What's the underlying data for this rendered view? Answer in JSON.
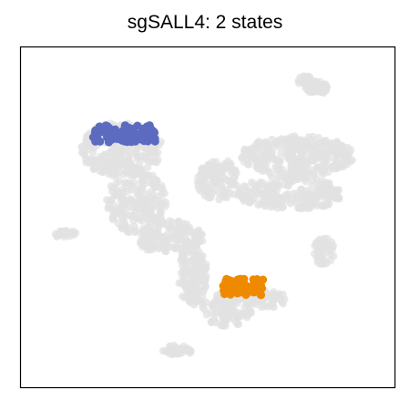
{
  "chart_data": {
    "type": "scatter",
    "title": "sgSALL4: 2 states",
    "xlabel": "",
    "ylabel": "",
    "ticks": "none",
    "grid": false,
    "legend": "none",
    "colors": {
      "background_cells": "#e2e2e2",
      "state_1": "#5c6bc0",
      "state_2": "#ef8a00",
      "frame": "#000000"
    },
    "xlim": [
      0,
      100
    ],
    "ylim": [
      0,
      100
    ],
    "background_regions": [
      {
        "name": "left-branch-top",
        "center": [
          27,
          70
        ],
        "radius": [
          11,
          8
        ],
        "count": 260
      },
      {
        "name": "left-branch-lower",
        "center": [
          31,
          55
        ],
        "radius": [
          8,
          10
        ],
        "count": 200
      },
      {
        "name": "left-to-center-bridge",
        "center": [
          40,
          44
        ],
        "radius": [
          9,
          5
        ],
        "count": 150
      },
      {
        "name": "stem-down",
        "center": [
          46,
          33
        ],
        "radius": [
          4,
          9
        ],
        "count": 150
      },
      {
        "name": "lower-spur",
        "center": [
          55,
          23
        ],
        "radius": [
          7,
          5
        ],
        "count": 110
      },
      {
        "name": "right-cluster-main",
        "center": [
          74,
          68
        ],
        "radius": [
          15,
          6
        ],
        "count": 300
      },
      {
        "name": "right-cluster-lower",
        "center": [
          72,
          57
        ],
        "radius": [
          14,
          5
        ],
        "count": 220
      },
      {
        "name": "center-band",
        "center": [
          53,
          61
        ],
        "radius": [
          6,
          6
        ],
        "count": 110
      },
      {
        "name": "right-top-ring",
        "center": [
          79,
          88
        ],
        "radius": [
          3,
          2
        ],
        "count": 50
      },
      {
        "name": "top-center-blob",
        "center": [
          76,
          90
        ],
        "radius": [
          2,
          1.5
        ],
        "count": 25
      },
      {
        "name": "left-small-island",
        "center": [
          12,
          45
        ],
        "radius": [
          3,
          1.2
        ],
        "count": 25
      },
      {
        "name": "right-small-island",
        "center": [
          81,
          40
        ],
        "radius": [
          3,
          4
        ],
        "count": 45
      },
      {
        "name": "bottom-island",
        "center": [
          42,
          11
        ],
        "radius": [
          4,
          1.5
        ],
        "count": 30
      },
      {
        "name": "right-lower-arm",
        "center": [
          66,
          26
        ],
        "radius": [
          5,
          2.5
        ],
        "count": 45
      }
    ],
    "series": [
      {
        "color": "#5c6bc0",
        "region": {
          "x": [
            19,
            36
          ],
          "y": [
            72,
            77
          ]
        },
        "count": 90
      },
      {
        "color": "#ef8a00",
        "region": {
          "x": [
            54,
            65
          ],
          "y": [
            27,
            32
          ]
        },
        "count": 70
      }
    ]
  }
}
